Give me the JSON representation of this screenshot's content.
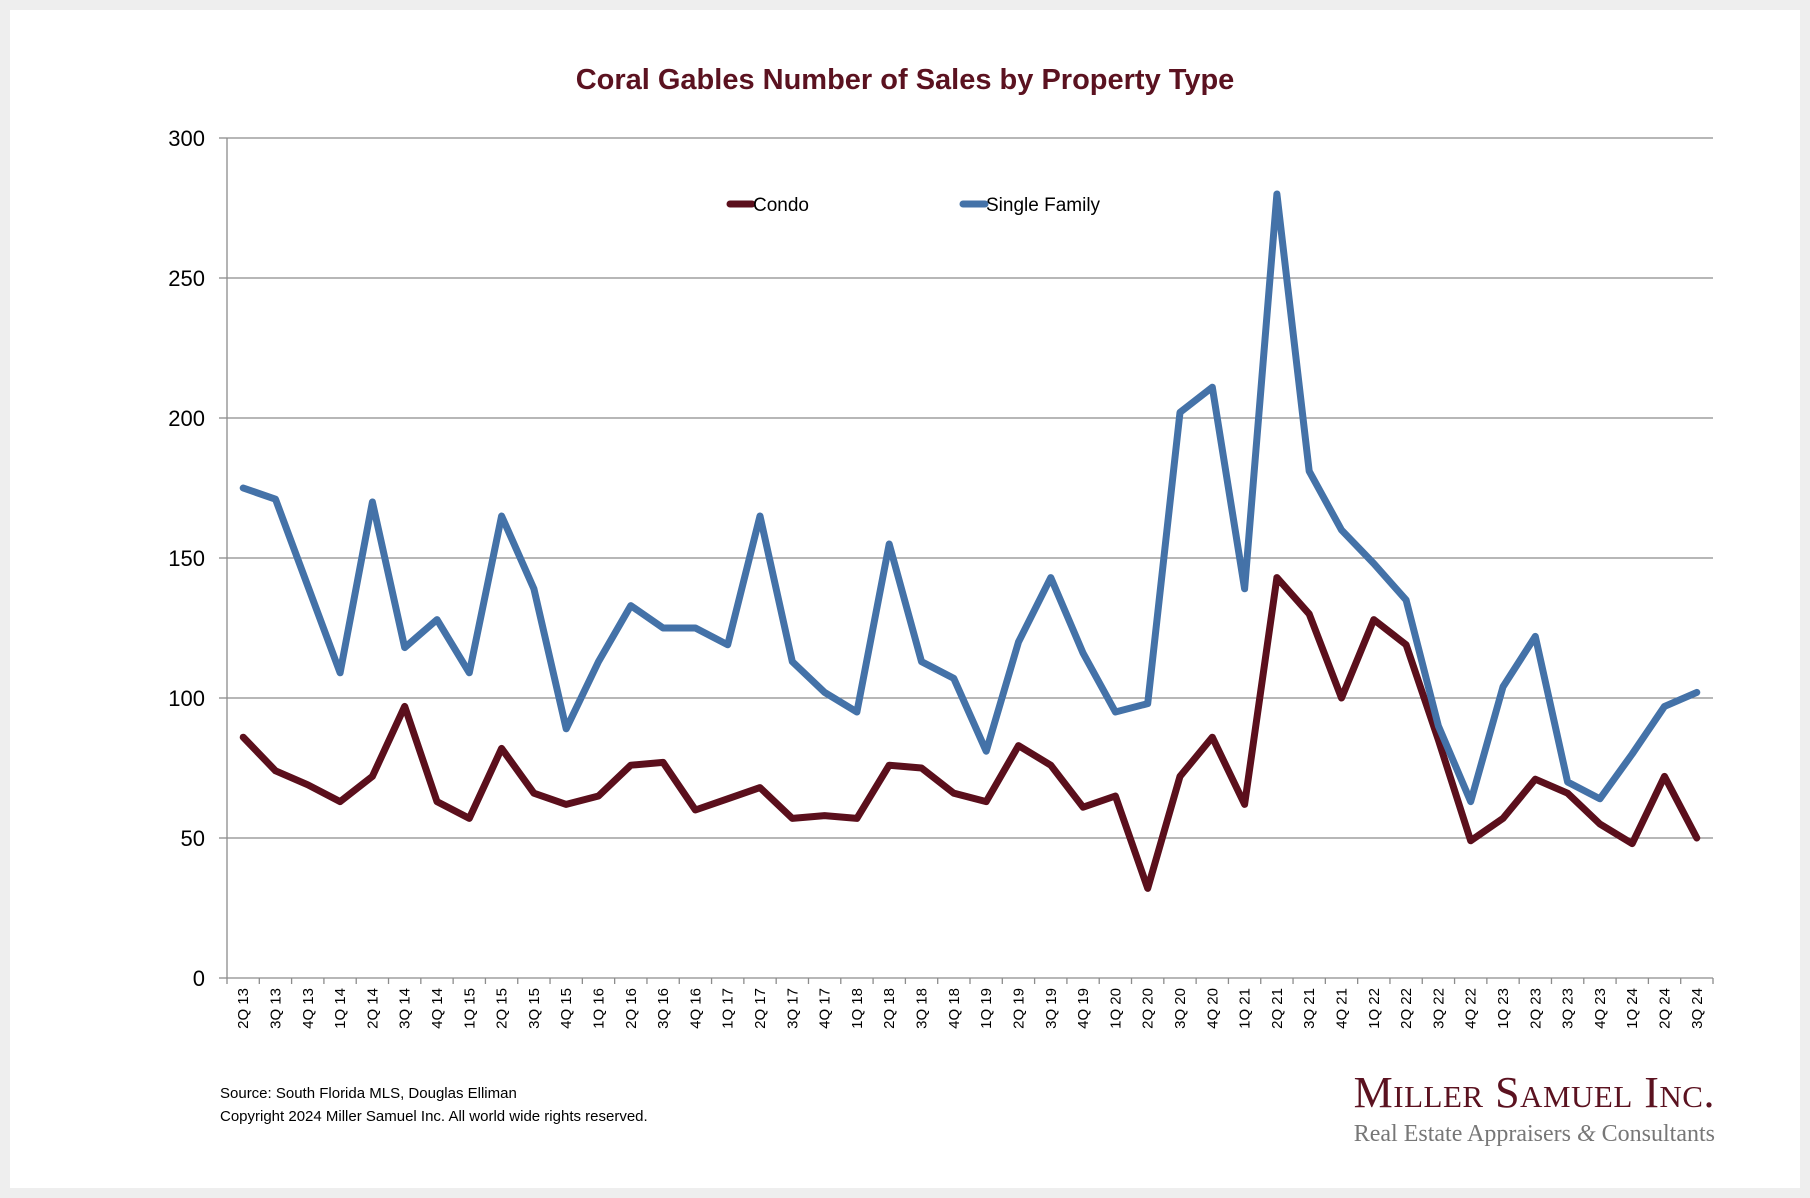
{
  "chart_data": {
    "type": "line",
    "title": "Coral Gables Number of Sales by Property Type",
    "xlabel": "",
    "ylabel": "",
    "ylim": [
      0,
      300
    ],
    "yticks": [
      0,
      50,
      100,
      150,
      200,
      250,
      300
    ],
    "grid": true,
    "legend_position": "top-center",
    "categories": [
      "2Q 13",
      "3Q 13",
      "4Q 13",
      "1Q 14",
      "2Q 14",
      "3Q 14",
      "4Q 14",
      "1Q 15",
      "2Q 15",
      "3Q 15",
      "4Q 15",
      "1Q 16",
      "2Q 16",
      "3Q 16",
      "4Q 16",
      "1Q 17",
      "2Q 17",
      "3Q 17",
      "4Q 17",
      "1Q 18",
      "2Q 18",
      "3Q 18",
      "4Q 18",
      "1Q 19",
      "2Q 19",
      "3Q 19",
      "4Q 19",
      "1Q 20",
      "2Q 20",
      "3Q 20",
      "4Q 20",
      "1Q 21",
      "2Q 21",
      "3Q 21",
      "4Q 21",
      "1Q 22",
      "2Q 22",
      "3Q 22",
      "4Q 22",
      "1Q 23",
      "2Q 23",
      "3Q 23",
      "4Q 23",
      "1Q 24",
      "2Q 24",
      "3Q 24"
    ],
    "series": [
      {
        "name": "Condo",
        "color": "#5b0f1c",
        "values": [
          86,
          74,
          69,
          63,
          72,
          97,
          63,
          57,
          82,
          66,
          62,
          65,
          76,
          77,
          60,
          64,
          68,
          57,
          58,
          57,
          76,
          75,
          66,
          63,
          83,
          76,
          61,
          65,
          32,
          72,
          86,
          62,
          143,
          130,
          100,
          128,
          119,
          85,
          49,
          57,
          71,
          66,
          55,
          48,
          72,
          50
        ]
      },
      {
        "name": "Single Family",
        "color": "#4472a8",
        "values": [
          175,
          171,
          140,
          109,
          170,
          118,
          128,
          109,
          165,
          139,
          89,
          113,
          133,
          125,
          125,
          119,
          165,
          113,
          102,
          95,
          155,
          113,
          107,
          81,
          120,
          143,
          116,
          95,
          98,
          202,
          211,
          139,
          280,
          181,
          160,
          148,
          135,
          90,
          63,
          104,
          122,
          70,
          64,
          80,
          97,
          102
        ]
      }
    ]
  },
  "footer": {
    "source": "Source: South Florida MLS, Douglas Elliman",
    "copyright": "Copyright 2024 Miller Samuel Inc.  All world wide rights reserved."
  },
  "logo": {
    "name": "Miller Samuel Inc.",
    "tagline_part1": "Real Estate Appraisers ",
    "tagline_amp": "&",
    "tagline_part2": " Consultants"
  }
}
